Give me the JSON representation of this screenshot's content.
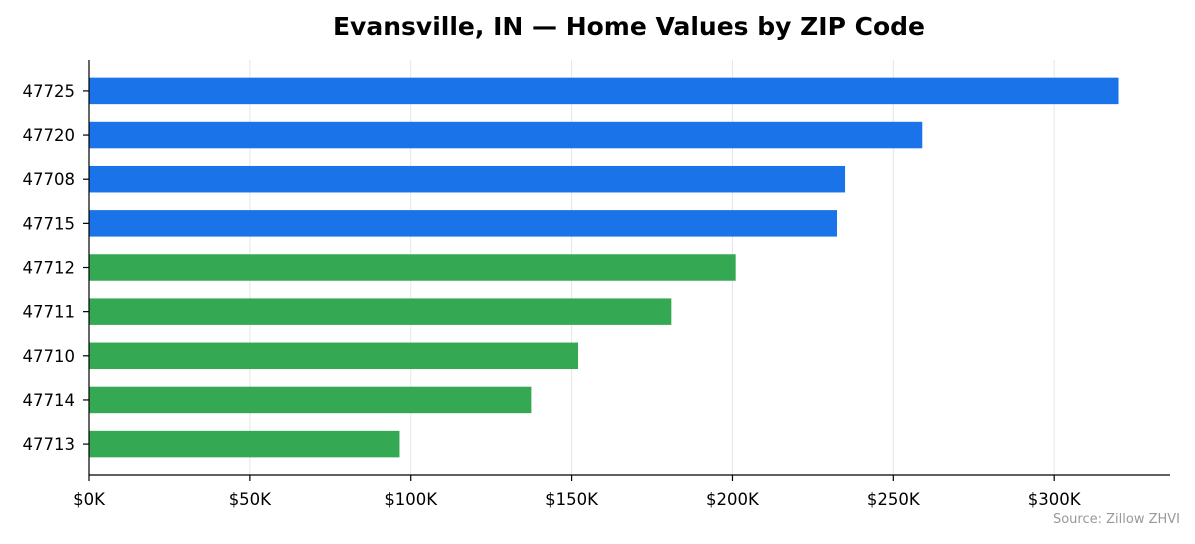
{
  "chart_data": {
    "type": "bar",
    "orientation": "horizontal",
    "title": "Evansville, IN — Home Values by ZIP Code",
    "categories": [
      "47725",
      "47720",
      "47708",
      "47715",
      "47712",
      "47711",
      "47710",
      "47714",
      "47713"
    ],
    "values": [
      320000,
      259000,
      235000,
      232500,
      201000,
      181000,
      152000,
      137500,
      96500
    ],
    "bar_colors": [
      "#1a73e8",
      "#1a73e8",
      "#1a73e8",
      "#1a73e8",
      "#34a853",
      "#34a853",
      "#34a853",
      "#34a853",
      "#34a853"
    ],
    "xticks": [
      0,
      50000,
      100000,
      150000,
      200000,
      250000,
      300000
    ],
    "xtick_labels": [
      "$0K",
      "$50K",
      "$100K",
      "$150K",
      "$200K",
      "$250K",
      "$300K"
    ],
    "xlim": [
      0,
      336000
    ],
    "grid": "vertical",
    "source": "Source: Zillow ZHVI"
  }
}
